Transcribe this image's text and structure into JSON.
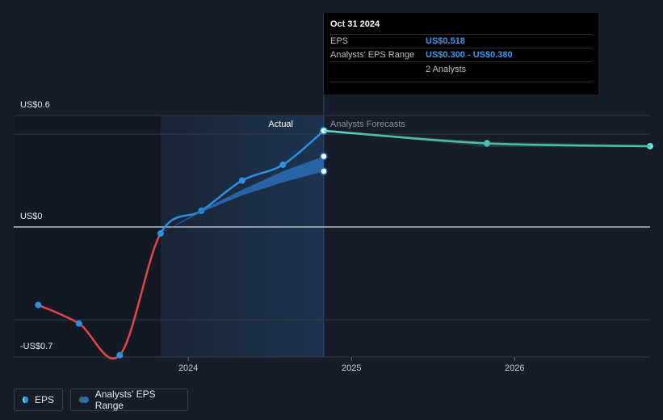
{
  "chart_data": {
    "type": "line",
    "xlim": [
      2022.93,
      2026.83
    ],
    "ylim": [
      -0.7,
      0.6
    ],
    "xticks": [
      2024,
      2025,
      2026
    ],
    "yticks": [
      {
        "value": 0.6,
        "label": "US$0.6"
      },
      {
        "value": 0.5,
        "label": null
      },
      {
        "value": 0,
        "label": "US$0"
      },
      {
        "value": -0.5,
        "label": null
      },
      {
        "value": -0.7,
        "label": "-US$0.7"
      }
    ],
    "annotations": {
      "actual": "Actual",
      "forecast": "Analysts Forecasts"
    },
    "series": [
      {
        "name": "EPS",
        "color": "#2e8fe0",
        "negative_color": "#e0474c",
        "x": [
          2023.08,
          2023.33,
          2023.58,
          2023.83,
          2024.08,
          2024.33,
          2024.58,
          2024.83
        ],
        "values": [
          -0.42,
          -0.52,
          -0.69,
          -0.035,
          0.087,
          0.25,
          0.335,
          0.518
        ]
      },
      {
        "color": "#5de6d0",
        "x": [
          2024.83,
          2025.83,
          2026.83
        ],
        "values": [
          0.518,
          0.45,
          0.435
        ]
      },
      {
        "name": "Analysts' EPS Range",
        "type": "range",
        "color": "#2a6db5",
        "x": [
          2023.83,
          2024.08,
          2024.33,
          2024.58,
          2024.83
        ],
        "low": [
          -0.035,
          0.08,
          0.17,
          0.24,
          0.3
        ],
        "high": [
          -0.035,
          0.09,
          0.2,
          0.3,
          0.38
        ]
      },
      {
        "type": "range",
        "color": "#3a6f6a",
        "x": [
          2024.83,
          2025.83,
          2026.83
        ],
        "low": [
          0.518,
          0.43,
          0.43
        ],
        "high": [
          0.518,
          0.46,
          0.44
        ]
      }
    ],
    "tooltip": {
      "title": "Oct 31 2024",
      "rows": [
        {
          "label": "EPS",
          "value": "US$0.518"
        },
        {
          "label": "Analysts' EPS Range",
          "value": "US$0.300 - US$0.380"
        },
        {
          "value": "2 Analysts"
        }
      ]
    }
  }
}
